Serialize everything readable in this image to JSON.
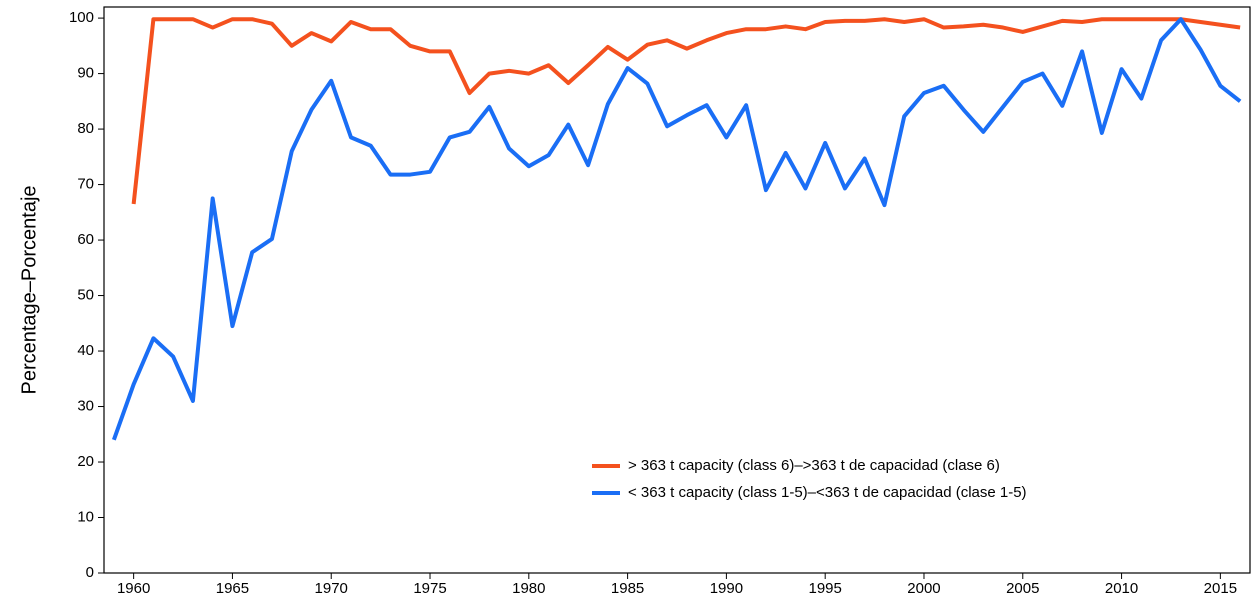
{
  "chart_data": {
    "type": "line",
    "y_label": "Percentage–Porcentaje",
    "x": [
      1959,
      1960,
      1961,
      1962,
      1963,
      1964,
      1965,
      1966,
      1967,
      1968,
      1969,
      1970,
      1971,
      1972,
      1973,
      1974,
      1975,
      1976,
      1977,
      1978,
      1979,
      1980,
      1981,
      1982,
      1983,
      1984,
      1985,
      1986,
      1987,
      1988,
      1989,
      1990,
      1991,
      1992,
      1993,
      1994,
      1995,
      1996,
      1997,
      1998,
      1999,
      2000,
      2001,
      2002,
      2003,
      2004,
      2005,
      2006,
      2007,
      2008,
      2009,
      2010,
      2011,
      2012,
      2013,
      2014,
      2015,
      2016
    ],
    "series": [
      {
        "name": "> 363 t capacity (class 6)–>363 t de capacidad (clase 6)",
        "color": "#f4511e",
        "values": [
          null,
          66.5,
          99.8,
          99.8,
          99.8,
          98.3,
          99.8,
          99.8,
          99,
          95,
          97.3,
          95.8,
          99.3,
          98,
          98,
          95,
          94,
          94,
          86.5,
          90,
          90.5,
          90,
          91.5,
          88.3,
          91.5,
          94.8,
          92.5,
          95.2,
          96,
          94.5,
          96,
          97.3,
          98,
          98,
          98.5,
          98,
          99.3,
          99.5,
          99.5,
          99.8,
          99.3,
          99.8,
          98.3,
          98.5,
          98.8,
          98.3,
          97.5,
          98.5,
          99.5,
          99.3,
          99.8,
          99.8,
          99.8,
          99.8,
          99.8,
          99.3,
          98.8,
          98.3
        ]
      },
      {
        "name": "< 363 t capacity (class 1-5)–<363 t de capacidad (clase 1-5)",
        "color": "#1a6ef5",
        "values": [
          24,
          34,
          42.3,
          39,
          31,
          67.5,
          44.5,
          57.8,
          60.2,
          76,
          83.5,
          88.7,
          78.5,
          77,
          71.8,
          71.8,
          72.3,
          78.5,
          79.5,
          84,
          76.5,
          73.3,
          75.3,
          80.8,
          73.5,
          84.5,
          91,
          88.2,
          80.5,
          82.5,
          84.3,
          78.5,
          84.3,
          69,
          75.7,
          69.3,
          77.5,
          69.3,
          74.7,
          66.3,
          82.3,
          86.5,
          87.8,
          83.5,
          79.5,
          84,
          88.5,
          90,
          84.2,
          94,
          79.3,
          90.8,
          85.5,
          96,
          99.8,
          94.3,
          87.8,
          85
        ]
      }
    ],
    "xlim": [
      1958.5,
      2016.5
    ],
    "xticks": [
      1960,
      1965,
      1970,
      1975,
      1980,
      1985,
      1990,
      1995,
      2000,
      2005,
      2010,
      2015
    ],
    "ylim": [
      0,
      102
    ],
    "yticks": [
      0,
      10,
      20,
      30,
      40,
      50,
      60,
      70,
      80,
      90,
      100
    ],
    "grid": false,
    "legend": "lower right"
  }
}
